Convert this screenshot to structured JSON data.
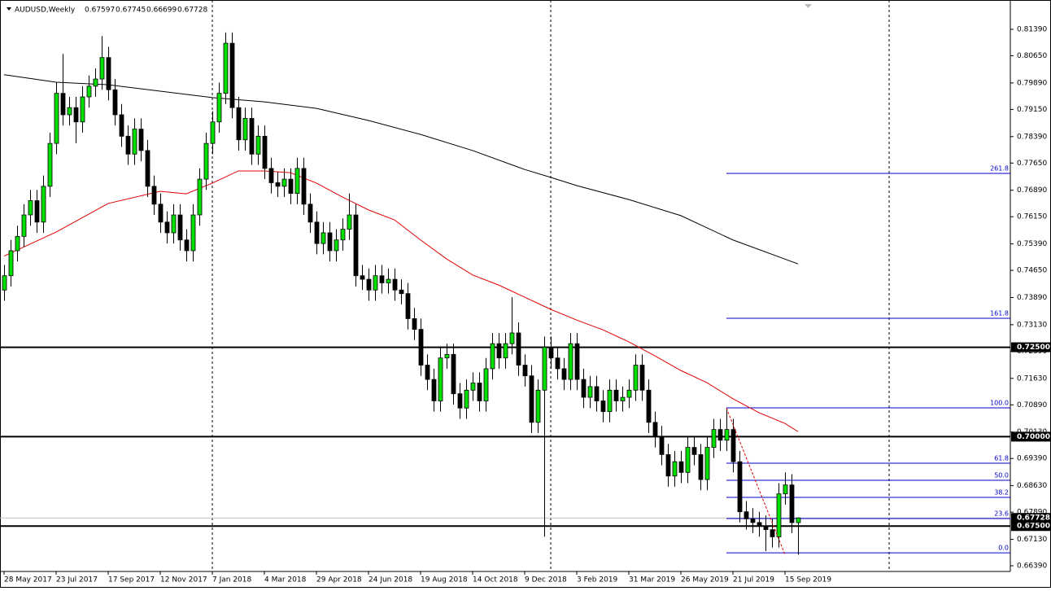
{
  "chart_data": {
    "type": "candlestick",
    "title": "AUDUSD,Weekly",
    "ylim": [
      0.66231,
      0.82209
    ],
    "yticks": [
      {
        "value": 0.8139,
        "label": "0.81390"
      },
      {
        "value": 0.8065,
        "label": "0.80650"
      },
      {
        "value": 0.7989,
        "label": "0.79890"
      },
      {
        "value": 0.7915,
        "label": "0.79150"
      },
      {
        "value": 0.7839,
        "label": "0.78390"
      },
      {
        "value": 0.7765,
        "label": "0.77650"
      },
      {
        "value": 0.7689,
        "label": "0.76890"
      },
      {
        "value": 0.7615,
        "label": "0.76150"
      },
      {
        "value": 0.7539,
        "label": "0.75390"
      },
      {
        "value": 0.7465,
        "label": "0.74650"
      },
      {
        "value": 0.7389,
        "label": "0.73890"
      },
      {
        "value": 0.7313,
        "label": "0.73130"
      },
      {
        "value": 0.7239,
        "label": "0.72390"
      },
      {
        "value": 0.7163,
        "label": "0.71630"
      },
      {
        "value": 0.7089,
        "label": "0.70890"
      },
      {
        "value": 0.7013,
        "label": "0.70130"
      },
      {
        "value": 0.6939,
        "label": "0.69390"
      },
      {
        "value": 0.6863,
        "label": "0.68630"
      },
      {
        "value": 0.6789,
        "label": "0.67890"
      },
      {
        "value": 0.6713,
        "label": "0.67130"
      },
      {
        "value": 0.6639,
        "label": "0.66390"
      }
    ],
    "categories": [
      "28 May 2017",
      null,
      null,
      null,
      null,
      null,
      null,
      null,
      "23 Jul 2017",
      null,
      null,
      null,
      null,
      null,
      null,
      null,
      "17 Sep 2017",
      null,
      null,
      null,
      null,
      null,
      null,
      null,
      "12 Nov 2017",
      null,
      null,
      null,
      null,
      null,
      null,
      null,
      "7 Jan 2018",
      null,
      null,
      null,
      null,
      null,
      null,
      null,
      "4 Mar 2018",
      null,
      null,
      null,
      null,
      null,
      null,
      null,
      "29 Apr 2018",
      null,
      null,
      null,
      null,
      null,
      null,
      null,
      "24 Jun 2018",
      null,
      null,
      null,
      null,
      null,
      null,
      null,
      "19 Aug 2018",
      null,
      null,
      null,
      null,
      null,
      null,
      null,
      "14 Oct 2018",
      null,
      null,
      null,
      null,
      null,
      null,
      null,
      "9 Dec 2018",
      null,
      null,
      null,
      null,
      null,
      null,
      null,
      "3 Feb 2019",
      null,
      null,
      null,
      null,
      null,
      null,
      null,
      "31 Mar 2019",
      null,
      null,
      null,
      null,
      null,
      null,
      null,
      "26 May 2019",
      null,
      null,
      null,
      null,
      null,
      null,
      null,
      "21 Jul 2019",
      null,
      null,
      null,
      null,
      null,
      null,
      null,
      "15 Sep 2019",
      null,
      null
    ],
    "up_color": "#00e000",
    "down_color": "#000000",
    "candles": [
      [
        0.741,
        0.748,
        0.738,
        0.745
      ],
      [
        0.745,
        0.755,
        0.742,
        0.752
      ],
      [
        0.752,
        0.759,
        0.749,
        0.756
      ],
      [
        0.756,
        0.765,
        0.753,
        0.762
      ],
      [
        0.762,
        0.769,
        0.759,
        0.766
      ],
      [
        0.766,
        0.769,
        0.757,
        0.76
      ],
      [
        0.76,
        0.773,
        0.757,
        0.77
      ],
      [
        0.77,
        0.785,
        0.767,
        0.782
      ],
      [
        0.782,
        0.799,
        0.779,
        0.796
      ],
      [
        0.796,
        0.807,
        0.787,
        0.79
      ],
      [
        0.79,
        0.795,
        0.787,
        0.792
      ],
      [
        0.792,
        0.795,
        0.782,
        0.788
      ],
      [
        0.788,
        0.798,
        0.785,
        0.795
      ],
      [
        0.795,
        0.801,
        0.792,
        0.798
      ],
      [
        0.798,
        0.803,
        0.795,
        0.8
      ],
      [
        0.8,
        0.812,
        0.797,
        0.806
      ],
      [
        0.806,
        0.809,
        0.794,
        0.797
      ],
      [
        0.797,
        0.8,
        0.787,
        0.79
      ],
      [
        0.79,
        0.793,
        0.781,
        0.784
      ],
      [
        0.784,
        0.787,
        0.776,
        0.779
      ],
      [
        0.779,
        0.789,
        0.776,
        0.786
      ],
      [
        0.786,
        0.789,
        0.777,
        0.78
      ],
      [
        0.78,
        0.783,
        0.767,
        0.77
      ],
      [
        0.77,
        0.773,
        0.762,
        0.765
      ],
      [
        0.765,
        0.768,
        0.757,
        0.76
      ],
      [
        0.76,
        0.763,
        0.754,
        0.757
      ],
      [
        0.757,
        0.765,
        0.754,
        0.762
      ],
      [
        0.762,
        0.765,
        0.752,
        0.755
      ],
      [
        0.755,
        0.758,
        0.749,
        0.752
      ],
      [
        0.752,
        0.765,
        0.749,
        0.762
      ],
      [
        0.762,
        0.775,
        0.759,
        0.772
      ],
      [
        0.772,
        0.785,
        0.769,
        0.782
      ],
      [
        0.782,
        0.791,
        0.779,
        0.788
      ],
      [
        0.788,
        0.799,
        0.785,
        0.796
      ],
      [
        0.796,
        0.813,
        0.793,
        0.81
      ],
      [
        0.81,
        0.813,
        0.789,
        0.792
      ],
      [
        0.792,
        0.795,
        0.78,
        0.783
      ],
      [
        0.783,
        0.792,
        0.78,
        0.789
      ],
      [
        0.789,
        0.792,
        0.776,
        0.779
      ],
      [
        0.779,
        0.787,
        0.776,
        0.784
      ],
      [
        0.784,
        0.787,
        0.772,
        0.775
      ],
      [
        0.775,
        0.778,
        0.768,
        0.771
      ],
      [
        0.771,
        0.774,
        0.767,
        0.77
      ],
      [
        0.77,
        0.775,
        0.767,
        0.772
      ],
      [
        0.772,
        0.775,
        0.765,
        0.768
      ],
      [
        0.768,
        0.778,
        0.765,
        0.775
      ],
      [
        0.775,
        0.778,
        0.762,
        0.765
      ],
      [
        0.765,
        0.768,
        0.757,
        0.76
      ],
      [
        0.76,
        0.763,
        0.751,
        0.754
      ],
      [
        0.754,
        0.76,
        0.751,
        0.757
      ],
      [
        0.757,
        0.76,
        0.749,
        0.752
      ],
      [
        0.752,
        0.758,
        0.749,
        0.755
      ],
      [
        0.755,
        0.761,
        0.752,
        0.758
      ],
      [
        0.758,
        0.768,
        0.755,
        0.762
      ],
      [
        0.762,
        0.765,
        0.742,
        0.745
      ],
      [
        0.745,
        0.748,
        0.741,
        0.744
      ],
      [
        0.744,
        0.747,
        0.738,
        0.741
      ],
      [
        0.741,
        0.748,
        0.738,
        0.745
      ],
      [
        0.745,
        0.748,
        0.74,
        0.743
      ],
      [
        0.743,
        0.747,
        0.74,
        0.744
      ],
      [
        0.744,
        0.747,
        0.738,
        0.741
      ],
      [
        0.741,
        0.744,
        0.737,
        0.74
      ],
      [
        0.74,
        0.743,
        0.73,
        0.733
      ],
      [
        0.733,
        0.736,
        0.727,
        0.73
      ],
      [
        0.73,
        0.733,
        0.717,
        0.72
      ],
      [
        0.72,
        0.723,
        0.713,
        0.716
      ],
      [
        0.716,
        0.719,
        0.707,
        0.71
      ],
      [
        0.71,
        0.725,
        0.707,
        0.722
      ],
      [
        0.722,
        0.726,
        0.719,
        0.723
      ],
      [
        0.723,
        0.726,
        0.709,
        0.712
      ],
      [
        0.712,
        0.715,
        0.705,
        0.708
      ],
      [
        0.708,
        0.716,
        0.705,
        0.713
      ],
      [
        0.713,
        0.718,
        0.71,
        0.715
      ],
      [
        0.715,
        0.718,
        0.707,
        0.71
      ],
      [
        0.71,
        0.722,
        0.707,
        0.719
      ],
      [
        0.719,
        0.729,
        0.716,
        0.726
      ],
      [
        0.726,
        0.729,
        0.719,
        0.722
      ],
      [
        0.722,
        0.729,
        0.719,
        0.726
      ],
      [
        0.726,
        0.739,
        0.723,
        0.729
      ],
      [
        0.729,
        0.732,
        0.717,
        0.72
      ],
      [
        0.72,
        0.723,
        0.714,
        0.717
      ],
      [
        0.717,
        0.72,
        0.701,
        0.704
      ],
      [
        0.704,
        0.716,
        0.701,
        0.713
      ],
      [
        0.713,
        0.728,
        0.672,
        0.725
      ],
      [
        0.725,
        0.728,
        0.719,
        0.722
      ],
      [
        0.722,
        0.725,
        0.716,
        0.719
      ],
      [
        0.719,
        0.722,
        0.713,
        0.716
      ],
      [
        0.716,
        0.729,
        0.713,
        0.726
      ],
      [
        0.726,
        0.729,
        0.713,
        0.716
      ],
      [
        0.716,
        0.719,
        0.708,
        0.711
      ],
      [
        0.711,
        0.717,
        0.708,
        0.714
      ],
      [
        0.714,
        0.717,
        0.707,
        0.71
      ],
      [
        0.71,
        0.713,
        0.704,
        0.707
      ],
      [
        0.707,
        0.716,
        0.704,
        0.713
      ],
      [
        0.713,
        0.716,
        0.707,
        0.71
      ],
      [
        0.71,
        0.714,
        0.707,
        0.711
      ],
      [
        0.711,
        0.716,
        0.708,
        0.713
      ],
      [
        0.713,
        0.723,
        0.71,
        0.72
      ],
      [
        0.72,
        0.723,
        0.71,
        0.713
      ],
      [
        0.713,
        0.716,
        0.701,
        0.704
      ],
      [
        0.704,
        0.707,
        0.697,
        0.7
      ],
      [
        0.7,
        0.703,
        0.692,
        0.695
      ],
      [
        0.695,
        0.698,
        0.686,
        0.689
      ],
      [
        0.689,
        0.696,
        0.686,
        0.693
      ],
      [
        0.693,
        0.696,
        0.687,
        0.69
      ],
      [
        0.69,
        0.7,
        0.687,
        0.697
      ],
      [
        0.697,
        0.7,
        0.692,
        0.695
      ],
      [
        0.695,
        0.698,
        0.685,
        0.688
      ],
      [
        0.688,
        0.7,
        0.685,
        0.697
      ],
      [
        0.697,
        0.705,
        0.694,
        0.702
      ],
      [
        0.702,
        0.705,
        0.696,
        0.699
      ],
      [
        0.699,
        0.708,
        0.696,
        0.702
      ],
      [
        0.702,
        0.705,
        0.69,
        0.693
      ],
      [
        0.693,
        0.696,
        0.676,
        0.679
      ],
      [
        0.679,
        0.682,
        0.674,
        0.677
      ],
      [
        0.677,
        0.68,
        0.673,
        0.676
      ],
      [
        0.676,
        0.679,
        0.672,
        0.675
      ],
      [
        0.675,
        0.678,
        0.668,
        0.674
      ],
      [
        0.674,
        0.677,
        0.669,
        0.672
      ],
      [
        0.672,
        0.687,
        0.669,
        0.684
      ],
      [
        0.684,
        0.69,
        0.681,
        0.6865
      ],
      [
        0.6865,
        0.6895,
        0.673,
        0.67597
      ],
      [
        0.67597,
        0.67745,
        0.66699,
        0.67728
      ]
    ],
    "moving_averages": [
      {
        "color": "#e00000",
        "x": [
          0,
          8,
          16,
          24,
          28,
          32,
          36,
          40,
          44,
          48,
          52,
          56,
          60,
          64,
          68,
          72,
          76,
          80,
          84,
          88,
          92,
          96,
          100,
          104,
          108,
          112,
          116,
          120,
          122
        ],
        "values": [
          0.7505,
          0.7572,
          0.7652,
          0.7686,
          0.7679,
          0.7709,
          0.7743,
          0.7743,
          0.7738,
          0.7709,
          0.767,
          0.7634,
          0.7606,
          0.755,
          0.7497,
          0.7452,
          0.7424,
          0.739,
          0.7356,
          0.7326,
          0.7299,
          0.7265,
          0.7226,
          0.7185,
          0.7151,
          0.7106,
          0.7067,
          0.7037,
          0.7014
        ]
      },
      {
        "color": "#000000",
        "x": [
          0,
          8,
          16,
          24,
          32,
          40,
          48,
          56,
          64,
          72,
          80,
          84,
          88,
          96,
          104,
          112,
          122
        ],
        "values": [
          0.8012,
          0.7991,
          0.7984,
          0.7966,
          0.7948,
          0.7936,
          0.7918,
          0.7884,
          0.7845,
          0.78,
          0.7747,
          0.7725,
          0.7702,
          0.7663,
          0.7618,
          0.755,
          0.7483
        ]
      }
    ],
    "trendline": {
      "color": "#e00000",
      "x": [
        111,
        120
      ],
      "values": [
        0.708,
        0.667
      ]
    },
    "horizontal_levels": [
      {
        "value": 0.725,
        "label": "0.72500"
      },
      {
        "value": 0.7,
        "label": "0.70000"
      },
      {
        "value": 0.675,
        "label": "0.67500"
      }
    ],
    "fibonacci": {
      "color": "#0000c8",
      "start": 111,
      "levels": [
        {
          "label": "261.8",
          "value": 0.77361
        },
        {
          "label": "161.8",
          "value": 0.73309
        },
        {
          "label": "100.0",
          "value": 0.70805
        },
        {
          "label": "61.8",
          "value": 0.69257
        },
        {
          "label": "50.0",
          "value": 0.68779
        },
        {
          "label": "38.2",
          "value": 0.68301
        },
        {
          "label": "23.6",
          "value": 0.6771
        },
        {
          "label": "0.0",
          "value": 0.66753
        }
      ]
    }
  }
}
